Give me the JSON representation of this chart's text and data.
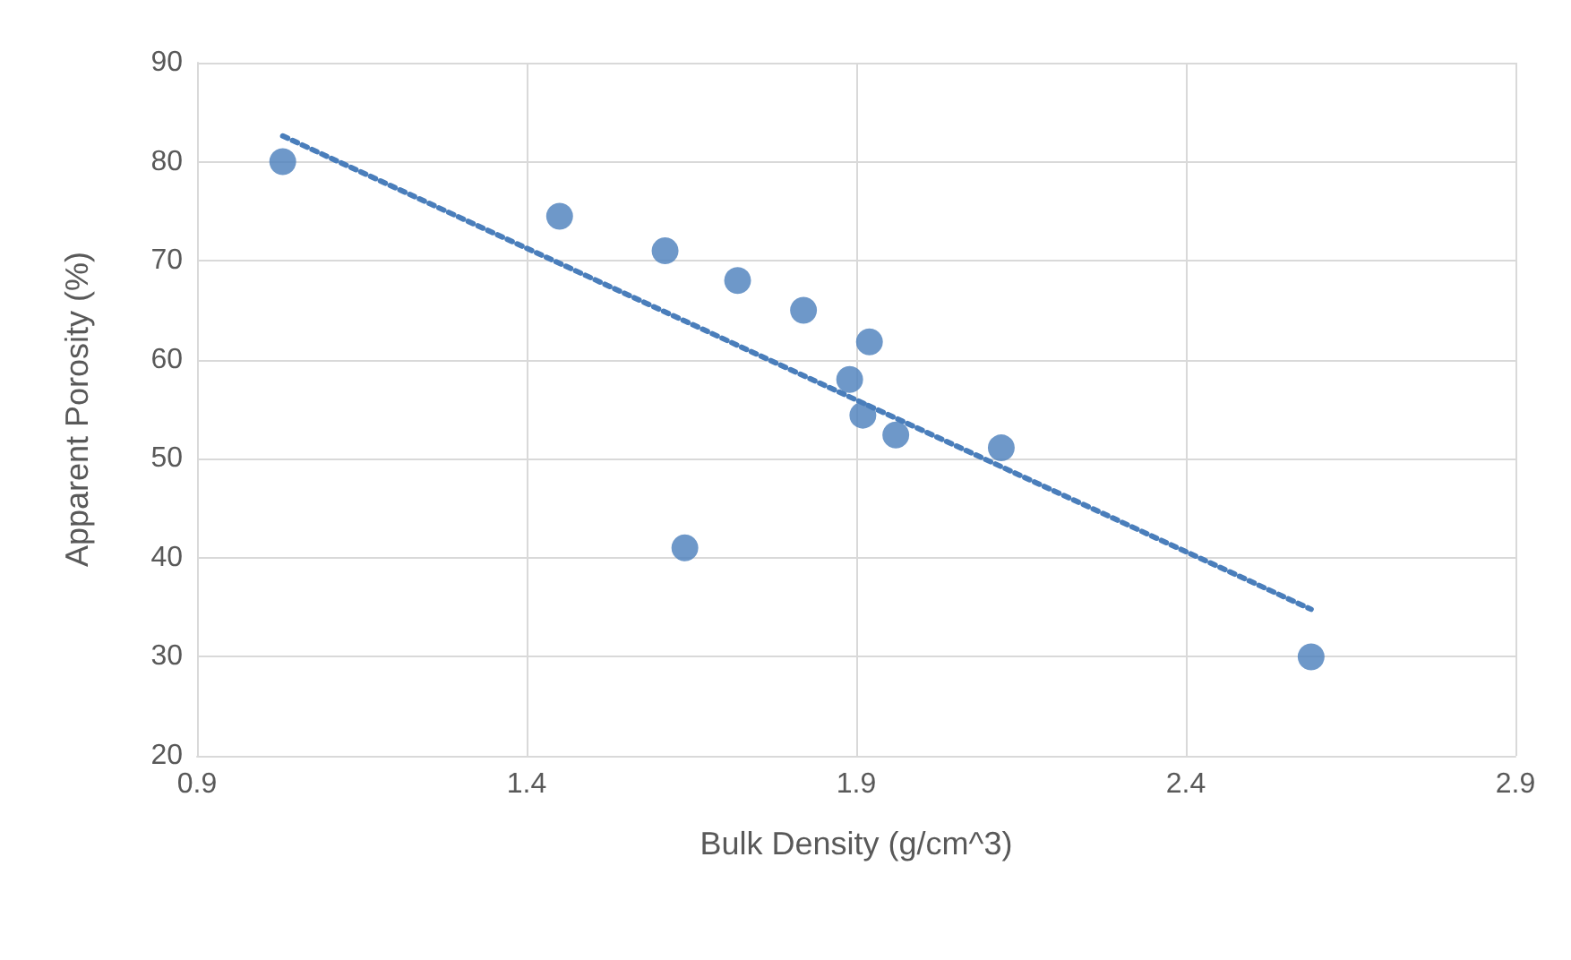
{
  "chart_data": {
    "type": "scatter",
    "xlabel": "Bulk Density (g/cm^3)",
    "ylabel": "Apparent Porosity (%)",
    "xlim": [
      0.9,
      2.9
    ],
    "xticks": [
      0.9,
      1.4,
      1.9,
      2.4,
      2.9
    ],
    "ylim": [
      20,
      90
    ],
    "yticks": [
      20,
      30,
      40,
      50,
      60,
      70,
      80,
      90
    ],
    "grid": true,
    "series": [
      {
        "color": "#4a7ebb",
        "marker": "circle",
        "x": [
          1.03,
          1.45,
          1.61,
          1.72,
          1.82,
          1.92,
          1.89,
          1.91,
          1.96,
          2.12,
          1.64,
          2.59
        ],
        "values": [
          80,
          74.5,
          71,
          68,
          65,
          61.8,
          58,
          54.4,
          52.4,
          51.1,
          41,
          30
        ]
      },
      {
        "type": "line",
        "color": "#4a7ebb",
        "marker": "none",
        "line_style": "dotted",
        "x": [
          1.03,
          2.59
        ],
        "values": [
          82.6,
          34.8
        ]
      }
    ]
  }
}
